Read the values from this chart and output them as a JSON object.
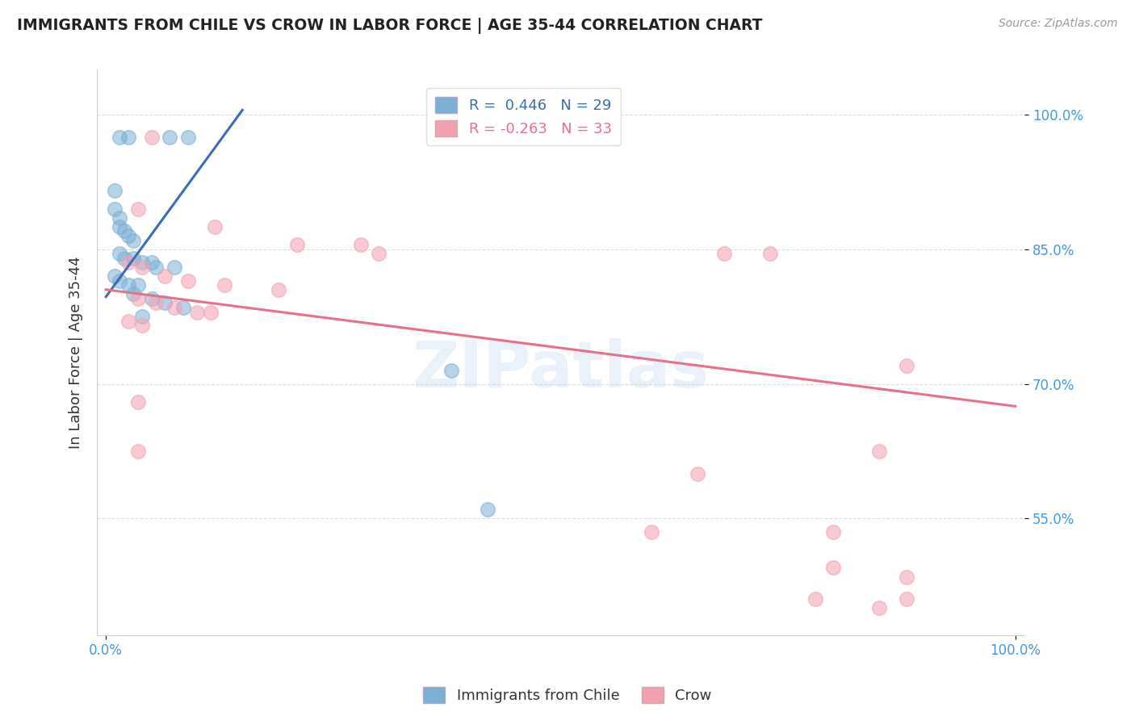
{
  "title": "IMMIGRANTS FROM CHILE VS CROW IN LABOR FORCE | AGE 35-44 CORRELATION CHART",
  "source": "Source: ZipAtlas.com",
  "ylabel": "In Labor Force | Age 35-44",
  "ytick_labels": [
    "55.0%",
    "70.0%",
    "85.0%",
    "100.0%"
  ],
  "ytick_values": [
    0.55,
    0.7,
    0.85,
    1.0
  ],
  "ymin": 0.42,
  "ymax": 1.05,
  "xmin": -0.01,
  "xmax": 1.01,
  "legend_label1": "Immigrants from Chile",
  "legend_label2": "Crow",
  "r1": 0.446,
  "n1": 29,
  "r2": -0.263,
  "n2": 33,
  "blue_color": "#7BAFD4",
  "pink_color": "#F4A0B0",
  "line_blue": "#3A6DB5",
  "line_pink": "#E8708A",
  "blue_line_x": [
    0.0,
    0.15
  ],
  "blue_line_y": [
    0.797,
    1.005
  ],
  "pink_line_x": [
    0.0,
    1.0
  ],
  "pink_line_y": [
    0.805,
    0.675
  ],
  "blue_scatter": [
    [
      0.015,
      0.975
    ],
    [
      0.025,
      0.975
    ],
    [
      0.07,
      0.975
    ],
    [
      0.09,
      0.975
    ],
    [
      0.01,
      0.915
    ],
    [
      0.01,
      0.895
    ],
    [
      0.015,
      0.885
    ],
    [
      0.015,
      0.875
    ],
    [
      0.02,
      0.87
    ],
    [
      0.025,
      0.865
    ],
    [
      0.03,
      0.86
    ],
    [
      0.015,
      0.845
    ],
    [
      0.02,
      0.84
    ],
    [
      0.03,
      0.84
    ],
    [
      0.04,
      0.835
    ],
    [
      0.05,
      0.835
    ],
    [
      0.055,
      0.83
    ],
    [
      0.075,
      0.83
    ],
    [
      0.01,
      0.82
    ],
    [
      0.015,
      0.815
    ],
    [
      0.025,
      0.81
    ],
    [
      0.035,
      0.81
    ],
    [
      0.03,
      0.8
    ],
    [
      0.05,
      0.795
    ],
    [
      0.065,
      0.79
    ],
    [
      0.085,
      0.785
    ],
    [
      0.04,
      0.775
    ],
    [
      0.38,
      0.715
    ],
    [
      0.42,
      0.56
    ]
  ],
  "pink_scatter": [
    [
      0.05,
      0.975
    ],
    [
      0.035,
      0.895
    ],
    [
      0.12,
      0.875
    ],
    [
      0.21,
      0.855
    ],
    [
      0.28,
      0.855
    ],
    [
      0.3,
      0.845
    ],
    [
      0.025,
      0.835
    ],
    [
      0.04,
      0.83
    ],
    [
      0.065,
      0.82
    ],
    [
      0.09,
      0.815
    ],
    [
      0.13,
      0.81
    ],
    [
      0.19,
      0.805
    ],
    [
      0.035,
      0.795
    ],
    [
      0.055,
      0.79
    ],
    [
      0.075,
      0.785
    ],
    [
      0.115,
      0.78
    ],
    [
      0.025,
      0.77
    ],
    [
      0.04,
      0.765
    ],
    [
      0.1,
      0.78
    ],
    [
      0.68,
      0.845
    ],
    [
      0.73,
      0.845
    ],
    [
      0.035,
      0.68
    ],
    [
      0.035,
      0.625
    ],
    [
      0.65,
      0.6
    ],
    [
      0.6,
      0.535
    ],
    [
      0.8,
      0.535
    ],
    [
      0.8,
      0.495
    ],
    [
      0.88,
      0.485
    ],
    [
      0.78,
      0.46
    ],
    [
      0.85,
      0.625
    ],
    [
      0.88,
      0.72
    ],
    [
      0.85,
      0.45
    ],
    [
      0.88,
      0.46
    ]
  ],
  "watermark": "ZIPatlas",
  "background_color": "#FFFFFF",
  "grid_color": "#DDDDDD"
}
